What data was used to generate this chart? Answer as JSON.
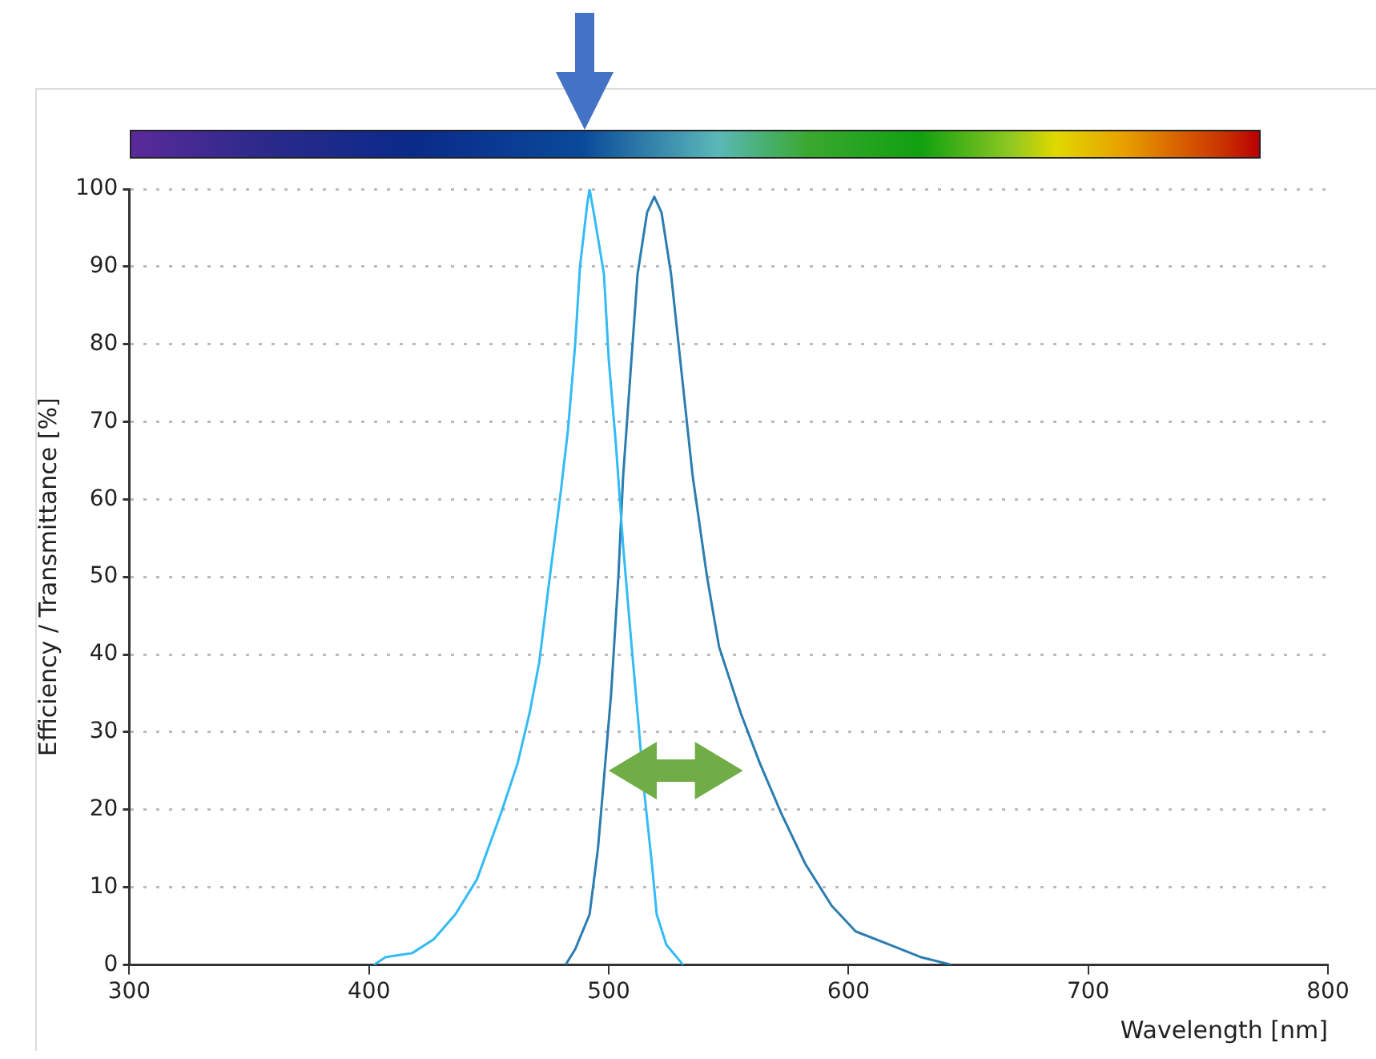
{
  "chart_data": {
    "type": "line",
    "xlabel": "Wavelength [nm]",
    "ylabel": "Efficiency / Transmittance [%]",
    "xlim": [
      300,
      800
    ],
    "xticks": [
      300,
      400,
      500,
      600,
      700,
      800
    ],
    "ylim": [
      0,
      100
    ],
    "yticks": [
      0,
      10,
      20,
      30,
      40,
      50,
      60,
      70,
      80,
      90,
      100
    ],
    "grid": "y",
    "series": [
      {
        "color": "#33bbf5",
        "x": [
          402,
          407,
          418,
          427,
          436,
          445,
          455,
          462,
          467,
          471,
          475,
          480,
          483,
          486,
          488,
          491,
          492,
          494,
          498,
          500,
          503,
          506,
          509,
          512,
          515,
          518,
          520,
          524,
          531
        ],
        "values": [
          0,
          1,
          1.5,
          3.3,
          6.5,
          11,
          19.5,
          26,
          32.5,
          39,
          49,
          61,
          69,
          80,
          90,
          98,
          100,
          96.5,
          89,
          78,
          67,
          54,
          43,
          32.5,
          21.7,
          13,
          6.5,
          2.6,
          0
        ]
      },
      {
        "color": "#2b7db0",
        "x": [
          482,
          486,
          492,
          495.5,
          498,
          501,
          504,
          506,
          509,
          512,
          516,
          519,
          522,
          526,
          530.5,
          535,
          541,
          546,
          555,
          563,
          572,
          582,
          593,
          603,
          617,
          630,
          643
        ],
        "values": [
          0,
          2,
          6.5,
          15,
          24,
          35,
          50,
          63,
          76,
          89,
          97,
          99,
          97,
          89,
          76,
          63,
          50,
          41,
          32.5,
          26,
          19.5,
          13,
          7.6,
          4.3,
          2.6,
          1,
          0
        ]
      }
    ]
  }
}
